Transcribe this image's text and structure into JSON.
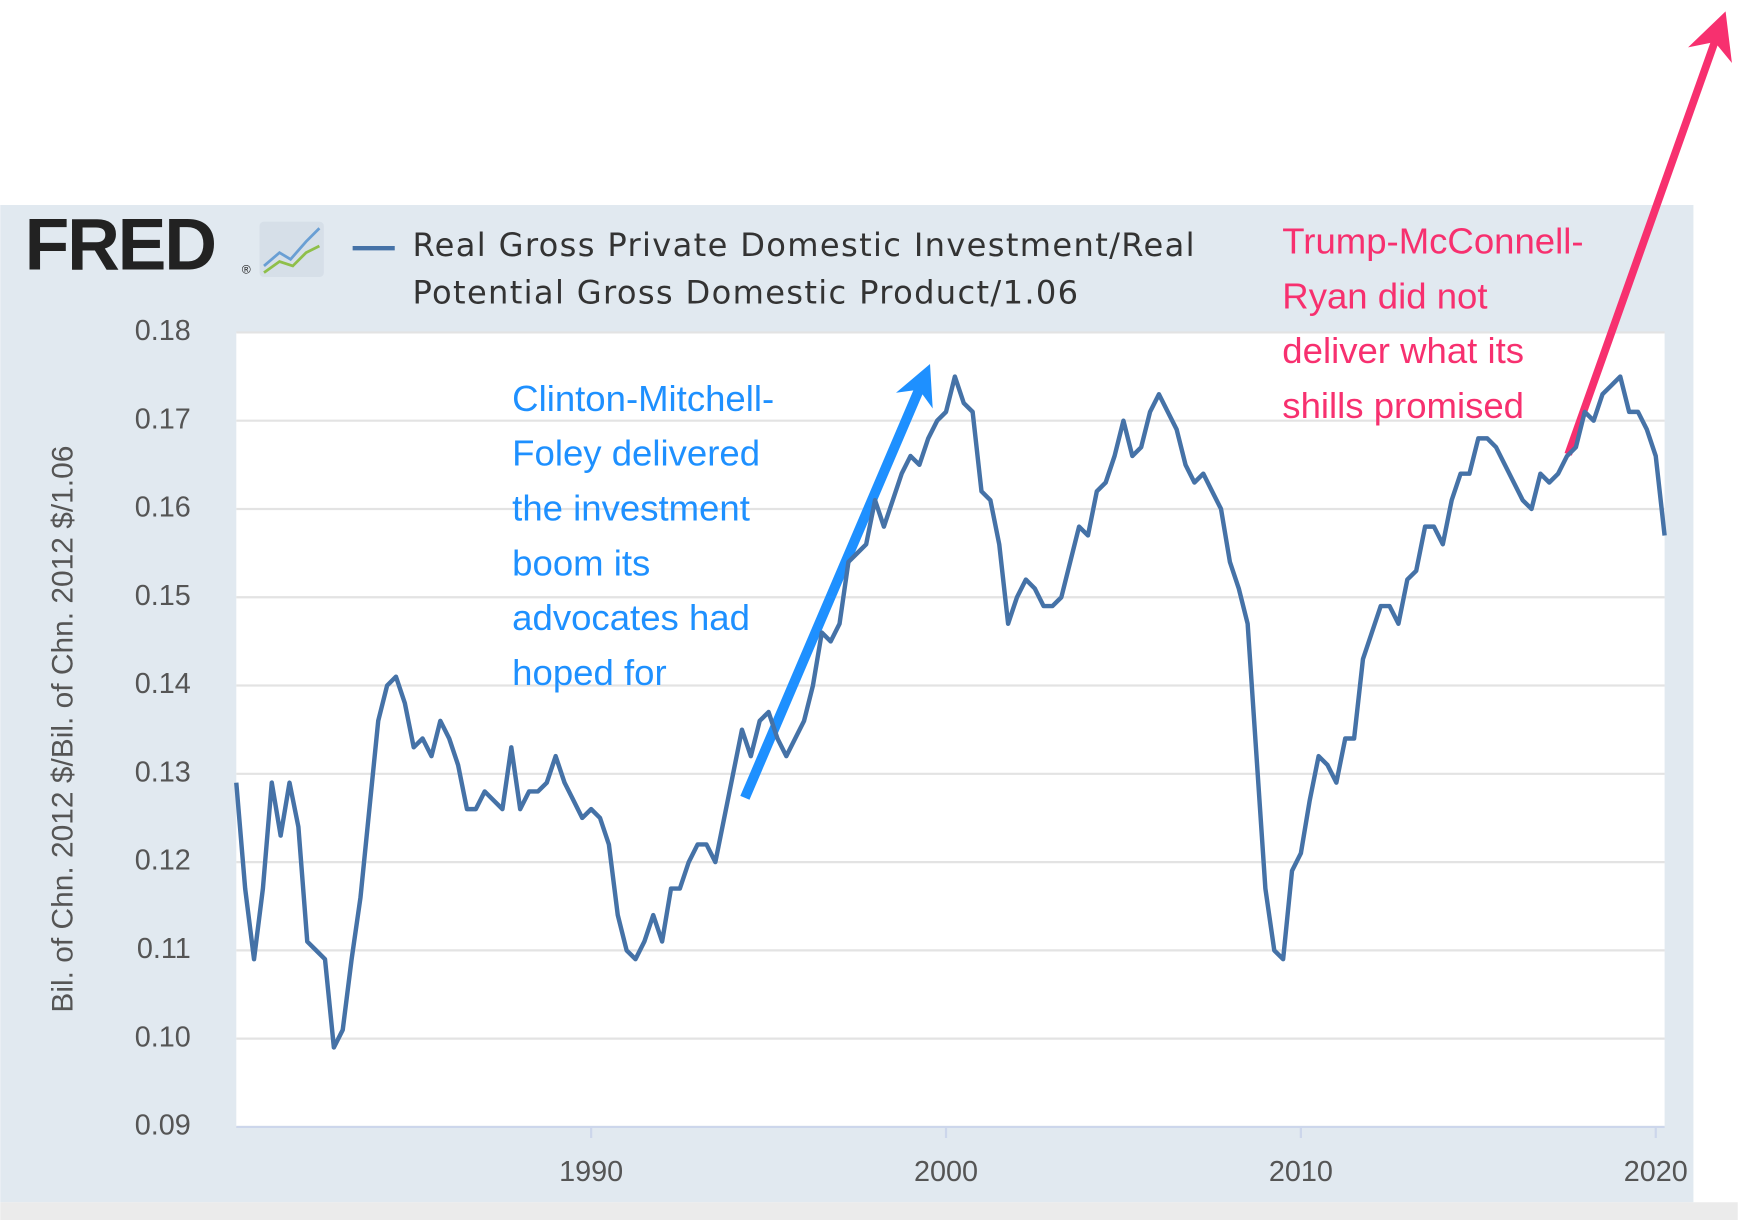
{
  "logo": {
    "text": "FRED",
    "mark": "®"
  },
  "chart_data": {
    "type": "line",
    "ylabel": "Bil. of Chn. 2012 $/Bil. of Chn. 2012 $/1.06",
    "xlim": [
      1980,
      2020.25
    ],
    "xticks": [
      1990,
      2000,
      2010,
      2020
    ],
    "ylim": [
      0.09,
      0.18
    ],
    "yticks": [
      0.09,
      {
        "value": 0.1,
        "label": "0.10"
      },
      0.11,
      0.12,
      0.13,
      0.14,
      0.15,
      0.16,
      0.17,
      0.18
    ],
    "grid": true,
    "series": [
      {
        "name": "Real Gross Private Domestic Investment/Real Potential Gross Domestic Product/1.06",
        "color": "#4572a7",
        "x": [
          1980,
          1980.25,
          1980.5,
          1980.75,
          1981,
          1981.25,
          1981.5,
          1981.75,
          1982,
          1982.25,
          1982.5,
          1982.75,
          1983,
          1983.25,
          1983.5,
          1983.75,
          1984,
          1984.25,
          1984.5,
          1984.75,
          1985,
          1985.25,
          1985.5,
          1985.75,
          1986,
          1986.25,
          1986.5,
          1986.75,
          1987,
          1987.25,
          1987.5,
          1987.75,
          1988,
          1988.25,
          1988.5,
          1988.75,
          1989,
          1989.25,
          1989.5,
          1989.75,
          1990,
          1990.25,
          1990.5,
          1990.75,
          1991,
          1991.25,
          1991.5,
          1991.75,
          1992,
          1992.25,
          1992.5,
          1992.75,
          1993,
          1993.25,
          1993.5,
          1993.75,
          1994,
          1994.25,
          1994.5,
          1994.75,
          1995,
          1995.25,
          1995.5,
          1995.75,
          1996,
          1996.25,
          1996.5,
          1996.75,
          1997,
          1997.25,
          1997.5,
          1997.75,
          1998,
          1998.25,
          1998.5,
          1998.75,
          1999,
          1999.25,
          1999.5,
          1999.75,
          2000,
          2000.25,
          2000.5,
          2000.75,
          2001,
          2001.25,
          2001.5,
          2001.75,
          2002,
          2002.25,
          2002.5,
          2002.75,
          2003,
          2003.25,
          2003.5,
          2003.75,
          2004,
          2004.25,
          2004.5,
          2004.75,
          2005,
          2005.25,
          2005.5,
          2005.75,
          2006,
          2006.25,
          2006.5,
          2006.75,
          2007,
          2007.25,
          2007.5,
          2007.75,
          2008,
          2008.25,
          2008.5,
          2008.75,
          2009,
          2009.25,
          2009.5,
          2009.75,
          2010,
          2010.25,
          2010.5,
          2010.75,
          2011,
          2011.25,
          2011.5,
          2011.75,
          2012,
          2012.25,
          2012.5,
          2012.75,
          2013,
          2013.25,
          2013.5,
          2013.75,
          2014,
          2014.25,
          2014.5,
          2014.75,
          2015,
          2015.25,
          2015.5,
          2015.75,
          2016,
          2016.25,
          2016.5,
          2016.75,
          2017,
          2017.25,
          2017.5,
          2017.75,
          2018,
          2018.25,
          2018.5,
          2018.75,
          2019,
          2019.25,
          2019.5,
          2019.75,
          2020,
          2020.25
        ],
        "values": [
          0.129,
          0.117,
          0.109,
          0.117,
          0.129,
          0.123,
          0.129,
          0.124,
          0.111,
          0.11,
          0.109,
          0.099,
          0.101,
          0.109,
          0.116,
          0.126,
          0.136,
          0.14,
          0.141,
          0.138,
          0.133,
          0.134,
          0.132,
          0.136,
          0.134,
          0.131,
          0.126,
          0.126,
          0.128,
          0.127,
          0.126,
          0.133,
          0.126,
          0.128,
          0.128,
          0.129,
          0.132,
          0.129,
          0.127,
          0.125,
          0.126,
          0.125,
          0.122,
          0.114,
          0.11,
          0.109,
          0.111,
          0.114,
          0.111,
          0.117,
          0.117,
          0.12,
          0.122,
          0.122,
          0.12,
          0.125,
          0.13,
          0.135,
          0.132,
          0.136,
          0.137,
          0.134,
          0.132,
          0.134,
          0.136,
          0.14,
          0.146,
          0.145,
          0.147,
          0.154,
          0.155,
          0.156,
          0.161,
          0.158,
          0.161,
          0.164,
          0.166,
          0.165,
          0.168,
          0.17,
          0.171,
          0.175,
          0.172,
          0.171,
          0.162,
          0.161,
          0.156,
          0.147,
          0.15,
          0.152,
          0.151,
          0.149,
          0.149,
          0.15,
          0.154,
          0.158,
          0.157,
          0.162,
          0.163,
          0.166,
          0.17,
          0.166,
          0.167,
          0.171,
          0.173,
          0.171,
          0.169,
          0.165,
          0.163,
          0.164,
          0.162,
          0.16,
          0.154,
          0.151,
          0.147,
          0.132,
          0.117,
          0.11,
          0.109,
          0.119,
          0.121,
          0.127,
          0.132,
          0.131,
          0.129,
          0.134,
          0.134,
          0.143,
          0.146,
          0.149,
          0.149,
          0.147,
          0.152,
          0.153,
          0.158,
          0.158,
          0.156,
          0.161,
          0.164,
          0.164,
          0.168,
          0.168,
          0.167,
          0.165,
          0.163,
          0.161,
          0.16,
          0.164,
          0.163,
          0.164,
          0.166,
          0.167,
          0.171,
          0.17,
          0.173,
          0.174,
          0.175,
          0.171,
          0.171,
          0.169,
          0.166,
          0.157
        ]
      }
    ],
    "annotations": [
      {
        "lines": [
          "Clinton-Mitchell-",
          "Foley delivered",
          "the investment",
          "boom its",
          "advocates had",
          "hoped for"
        ],
        "color": "#1e90ff"
      },
      {
        "lines": [
          "Trump-McConnell-",
          "Ryan did not",
          "deliver what its",
          "shills promised"
        ],
        "color": "#f7306f"
      }
    ]
  }
}
